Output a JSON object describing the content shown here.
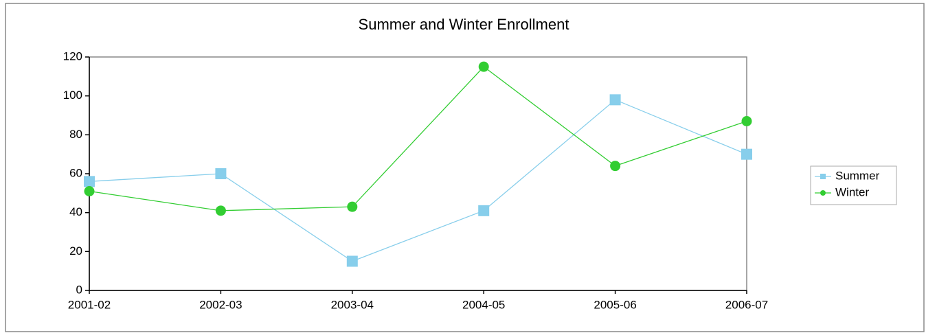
{
  "chart_data": {
    "type": "line",
    "title": "Summer and Winter Enrollment",
    "categories": [
      "2001-02",
      "2002-03",
      "2003-04",
      "2004-05",
      "2005-06",
      "2006-07"
    ],
    "series": [
      {
        "name": "Summer",
        "color": "#87ceeb",
        "marker": "square",
        "values": [
          56,
          60,
          15,
          41,
          98,
          70
        ]
      },
      {
        "name": "Winter",
        "color": "#32cd32",
        "marker": "circle",
        "values": [
          51,
          41,
          43,
          115,
          64,
          87
        ]
      }
    ],
    "ylim": [
      0,
      120
    ],
    "yticks": [
      0,
      20,
      40,
      60,
      80,
      100,
      120
    ],
    "grid": false,
    "legend": "right"
  }
}
